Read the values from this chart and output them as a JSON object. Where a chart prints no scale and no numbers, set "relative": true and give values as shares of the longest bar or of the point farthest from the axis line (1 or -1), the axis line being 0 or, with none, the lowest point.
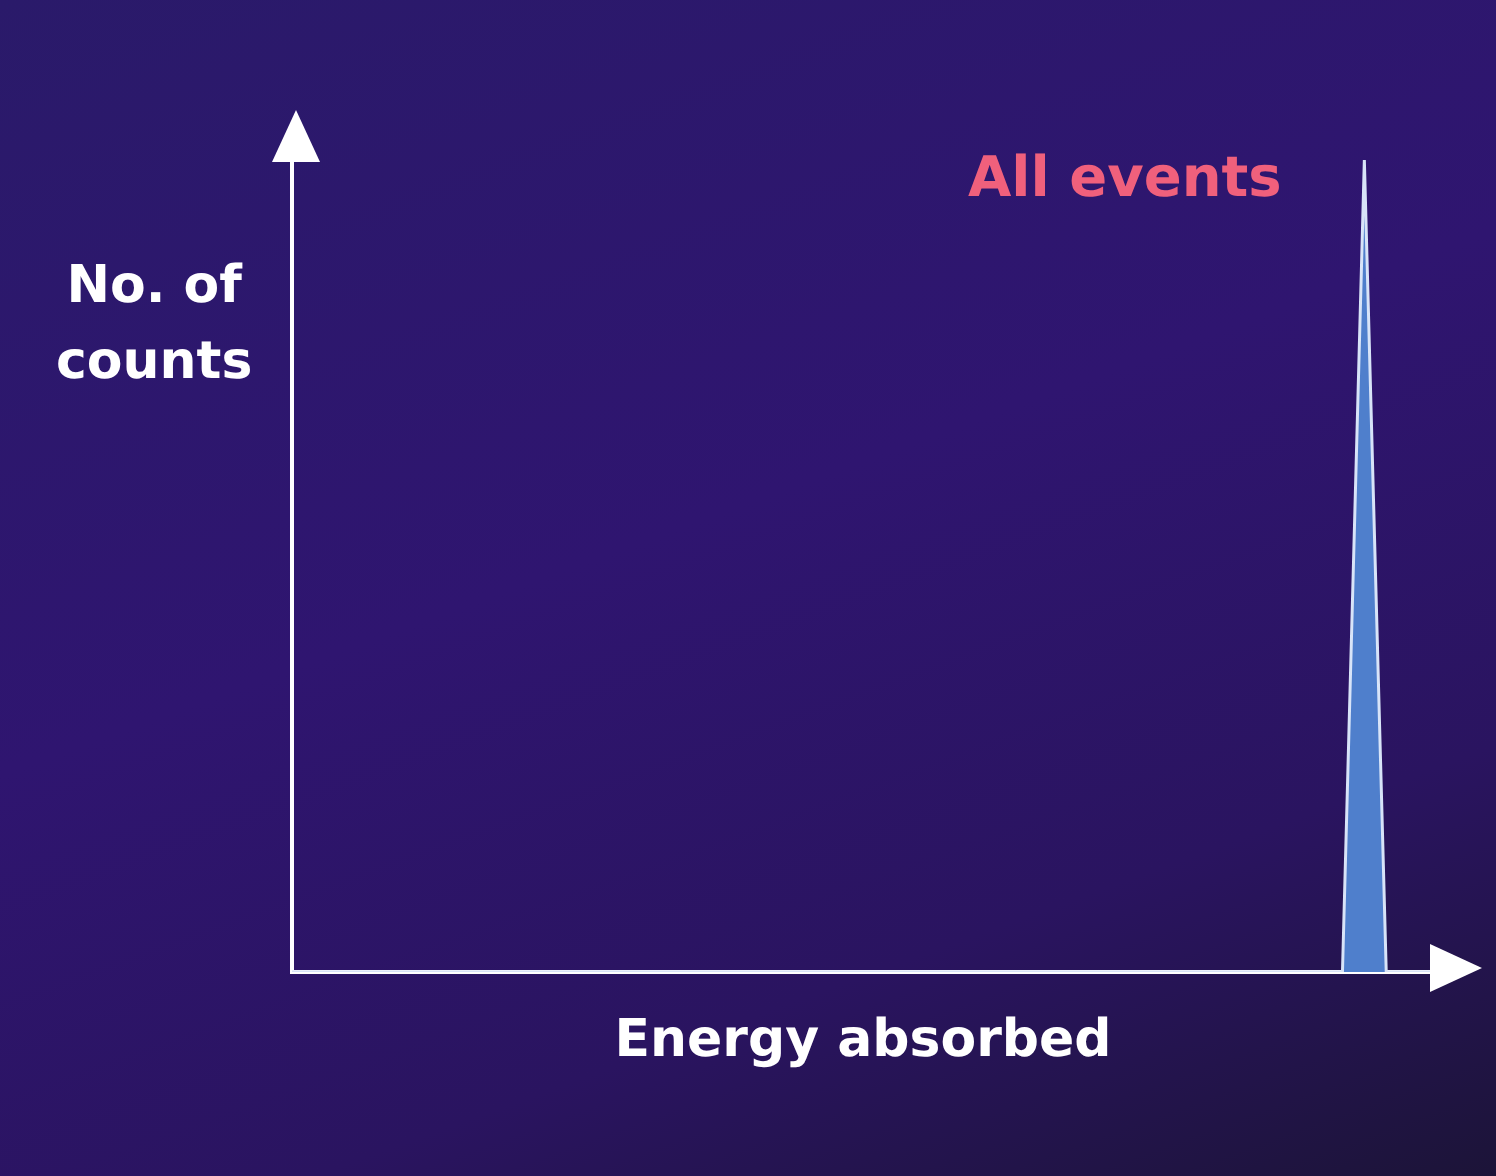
{
  "chart_data": {
    "type": "area",
    "relative": true,
    "xlabel": "Energy absorbed",
    "ylabel": "No. of\ncounts",
    "annotations": [
      "All events"
    ],
    "categories": [
      null,
      null,
      null,
      null,
      null,
      null,
      null,
      null,
      null,
      null,
      null,
      null,
      null,
      null,
      null,
      null,
      null,
      null,
      null,
      null,
      null,
      null,
      null,
      null,
      null,
      null,
      null,
      null,
      null,
      null,
      null,
      null,
      null,
      null,
      null,
      null,
      null,
      null,
      null,
      null,
      null,
      null,
      null,
      null,
      null,
      null,
      null,
      null,
      null,
      null,
      null,
      null,
      null
    ],
    "series": [
      {
        "color": "#4f7fcc",
        "values": [
          0,
          0,
          0,
          0,
          0,
          0,
          0,
          0,
          0,
          0,
          0,
          0,
          0,
          0,
          0,
          0,
          0,
          0,
          0,
          0,
          0,
          0,
          0,
          0,
          0,
          0,
          0,
          0,
          0,
          0,
          0,
          0,
          0,
          0,
          0,
          0,
          0,
          0,
          0,
          0,
          0,
          0,
          0,
          0,
          0,
          0,
          0,
          0,
          0,
          1,
          0,
          0,
          0
        ]
      }
    ],
    "grid": false,
    "legend": false
  }
}
